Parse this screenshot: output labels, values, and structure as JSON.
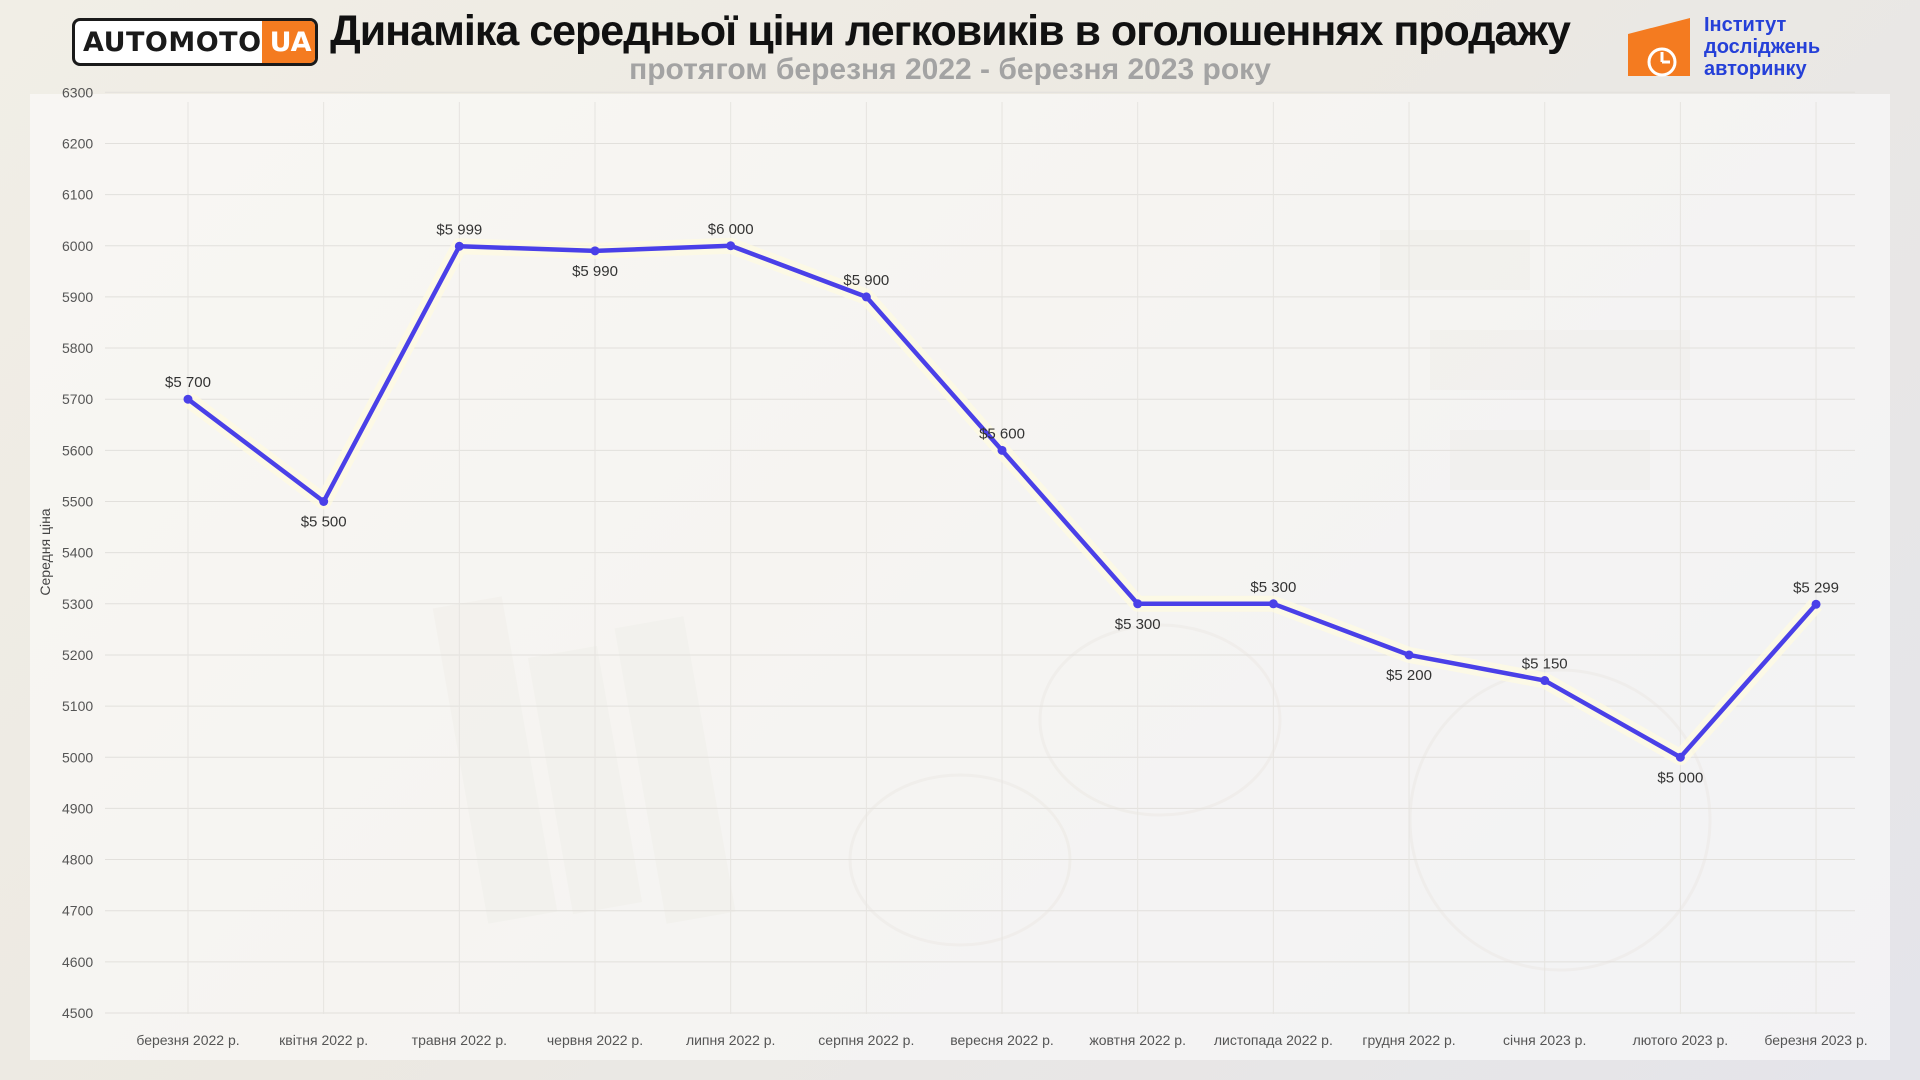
{
  "header": {
    "title": "Динаміка середньої ціни легковиків в оголошеннях продажу",
    "subtitle": "протягом березня 2022 - березня 2023 року"
  },
  "logo_left": {
    "main": "AUTOMOTO",
    "accent": "UA"
  },
  "logo_right": {
    "lines": [
      "Інститут",
      "досліджень",
      "авторинку"
    ]
  },
  "colors": {
    "line": "#4a40e8",
    "orange": "#f47b20",
    "blue": "#2540d8"
  },
  "chart_data": {
    "type": "line",
    "title": "Динаміка середньої ціни легковиків в оголошеннях продажу",
    "subtitle": "протягом березня 2022 - березня 2023 року",
    "ylabel": "Середня ціна",
    "xlabel": "",
    "ylim": [
      4500,
      6300
    ],
    "yticks": [
      4500,
      4600,
      4700,
      4800,
      4900,
      5000,
      5100,
      5200,
      5300,
      5400,
      5500,
      5600,
      5700,
      5800,
      5900,
      6000,
      6100,
      6200,
      6300
    ],
    "grid": true,
    "categories": [
      "березня 2022 р.",
      "квітня 2022 р.",
      "травня 2022 р.",
      "червня 2022 р.",
      "липня 2022 р.",
      "серпня 2022 р.",
      "вересня 2022 р.",
      "жовтня 2022 р.",
      "листопада 2022 р.",
      "грудня 2022 р.",
      "січня 2023 р.",
      "лютого 2023 р.",
      "березня 2023 р."
    ],
    "values": [
      5700,
      5500,
      5999,
      5990,
      6000,
      5900,
      5600,
      5300,
      5300,
      5200,
      5150,
      5000,
      5299
    ],
    "data_labels": [
      "$5 700",
      "$5 500",
      "$5 999",
      "$5 990",
      "$6 000",
      "$5 900",
      "$5 600",
      "$5 300",
      "$5 300",
      "$5 200",
      "$5 150",
      "$5 000",
      "$5 299"
    ],
    "label_position": [
      "above",
      "below",
      "above",
      "below",
      "above",
      "above",
      "above",
      "below",
      "above",
      "below",
      "above",
      "below",
      "above"
    ]
  }
}
